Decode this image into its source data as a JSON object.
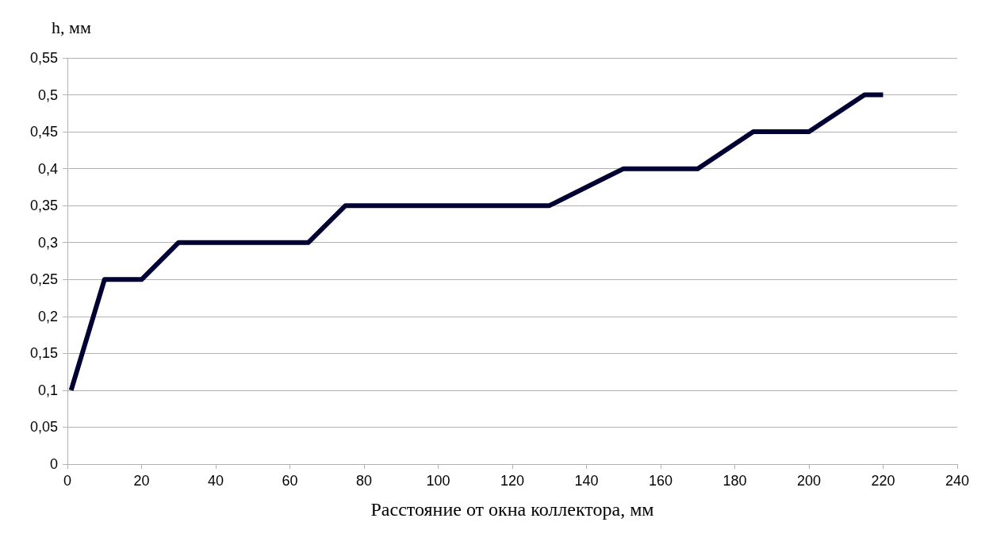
{
  "chart_data": {
    "type": "line",
    "xlabel": "Расстояние от окна коллектора, мм",
    "ylabel": "h, мм",
    "x": [
      1,
      10,
      20,
      30,
      40,
      65,
      75,
      90,
      100,
      115,
      130,
      150,
      170,
      185,
      200,
      215,
      220
    ],
    "series": [
      {
        "color": "#000033",
        "values": [
          0.1,
          0.25,
          0.25,
          0.3,
          0.3,
          0.3,
          0.35,
          0.35,
          0.35,
          0.35,
          0.35,
          0.4,
          0.4,
          0.45,
          0.45,
          0.5,
          0.5
        ]
      }
    ],
    "xlim": [
      0,
      240
    ],
    "xticks": [
      0,
      20,
      40,
      60,
      80,
      100,
      120,
      140,
      160,
      180,
      200,
      220,
      240
    ],
    "ylim": [
      0,
      0.55
    ],
    "yticks": [
      {
        "value": 0,
        "label": "0"
      },
      {
        "value": 0.05,
        "label": "0,05"
      },
      {
        "value": 0.1,
        "label": "0,1"
      },
      {
        "value": 0.15,
        "label": "0,15"
      },
      {
        "value": 0.2,
        "label": "0,2"
      },
      {
        "value": 0.25,
        "label": "0,25"
      },
      {
        "value": 0.3,
        "label": "0,3"
      },
      {
        "value": 0.35,
        "label": "0,35"
      },
      {
        "value": 0.4,
        "label": "0,4"
      },
      {
        "value": 0.45,
        "label": "0,45"
      },
      {
        "value": 0.5,
        "label": "0,5"
      },
      {
        "value": 0.55,
        "label": "0,55"
      }
    ],
    "grid": "y",
    "marker": "none",
    "line_style": "solid"
  }
}
